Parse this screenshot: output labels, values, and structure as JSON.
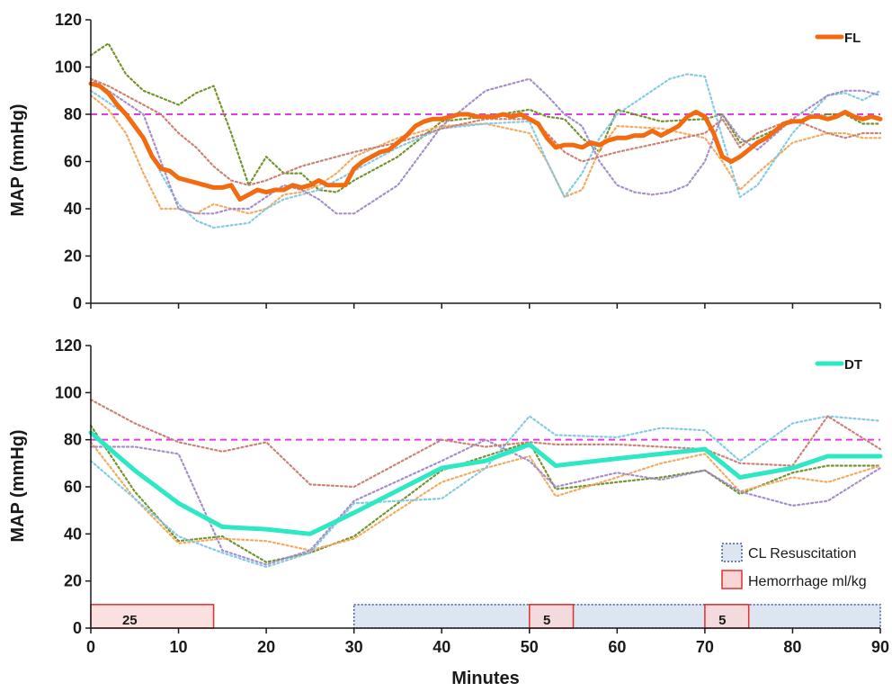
{
  "chart_data": [
    {
      "type": "line",
      "title": "",
      "xlabel": "",
      "ylabel": "MAP (mmHg)",
      "xlim": [
        0,
        90
      ],
      "ylim": [
        0,
        120
      ],
      "xticks": [
        0,
        10,
        20,
        30,
        40,
        50,
        60,
        70,
        80,
        90
      ],
      "yticks": [
        0,
        20,
        40,
        60,
        80,
        100,
        120
      ],
      "reference_line": 80,
      "legend_position": "top-right",
      "colors": {
        "main": "#f26b10",
        "reference": "#e23ae6",
        "individuals": [
          "#6b8e23",
          "#f2a65a",
          "#7ec8e3",
          "#a08ac8",
          "#c97c6e"
        ]
      },
      "main_series": {
        "name": "FL",
        "x": [
          0,
          1,
          2,
          3,
          4,
          5,
          6,
          7,
          8,
          9,
          10,
          11,
          12,
          13,
          14,
          15,
          16,
          17,
          18,
          19,
          20,
          21,
          22,
          23,
          24,
          25,
          26,
          27,
          28,
          29,
          30,
          31,
          32,
          33,
          34,
          35,
          36,
          37,
          38,
          39,
          40,
          41,
          42,
          43,
          44,
          45,
          46,
          47,
          48,
          49,
          50,
          51,
          52,
          53,
          54,
          55,
          56,
          57,
          58,
          59,
          60,
          61,
          62,
          63,
          64,
          65,
          66,
          67,
          68,
          69,
          70,
          71,
          72,
          73,
          74,
          75,
          76,
          77,
          78,
          79,
          80,
          81,
          82,
          83,
          84,
          85,
          86,
          87,
          88,
          89,
          90
        ],
        "values": [
          93,
          92,
          89,
          84,
          80,
          75,
          70,
          62,
          57,
          56,
          53,
          52,
          51,
          50,
          49,
          49,
          50,
          44,
          46,
          48,
          47,
          48,
          48,
          50,
          49,
          50,
          52,
          50,
          50,
          50,
          57,
          60,
          62,
          64,
          65,
          68,
          71,
          75,
          77,
          78,
          78,
          79,
          80,
          80,
          79,
          79,
          79,
          80,
          79,
          80,
          78,
          76,
          70,
          66,
          67,
          67,
          66,
          68,
          67,
          69,
          70,
          70,
          71,
          71,
          73,
          71,
          73,
          75,
          79,
          81,
          79,
          72,
          62,
          60,
          62,
          65,
          68,
          70,
          73,
          76,
          77,
          77,
          79,
          79,
          78,
          79,
          81,
          79,
          78,
          79,
          78
        ]
      },
      "individual_series": [
        {
          "x": [
            0,
            2,
            4,
            6,
            8,
            10,
            12,
            14,
            16,
            18,
            20,
            22,
            24,
            26,
            28,
            30,
            35,
            40,
            45,
            50,
            52,
            54,
            56,
            58,
            60,
            65,
            70,
            72,
            74,
            76,
            80,
            84,
            86,
            88,
            90
          ],
          "values": [
            105,
            110,
            97,
            90,
            87,
            84,
            89,
            92,
            72,
            50,
            62,
            55,
            55,
            48,
            47,
            52,
            62,
            77,
            79,
            82,
            79,
            78,
            70,
            64,
            82,
            77,
            78,
            80,
            68,
            70,
            77,
            80,
            80,
            76,
            76
          ]
        },
        {
          "x": [
            0,
            2,
            4,
            6,
            8,
            10,
            12,
            14,
            16,
            18,
            20,
            22,
            24,
            26,
            28,
            30,
            35,
            40,
            45,
            50,
            52,
            54,
            56,
            58,
            60,
            65,
            70,
            72,
            74,
            76,
            80,
            84,
            86,
            88,
            90
          ],
          "values": [
            88,
            82,
            72,
            55,
            40,
            40,
            38,
            42,
            40,
            38,
            40,
            46,
            47,
            50,
            55,
            62,
            70,
            75,
            76,
            72,
            60,
            45,
            48,
            65,
            75,
            74,
            70,
            60,
            48,
            55,
            68,
            72,
            72,
            70,
            70
          ]
        },
        {
          "x": [
            0,
            2,
            4,
            6,
            8,
            10,
            12,
            14,
            16,
            18,
            20,
            22,
            24,
            26,
            28,
            30,
            35,
            40,
            45,
            50,
            52,
            54,
            56,
            58,
            60,
            62,
            64,
            66,
            68,
            70,
            72,
            74,
            76,
            80,
            84,
            86,
            88,
            90
          ],
          "values": [
            90,
            85,
            80,
            70,
            55,
            42,
            35,
            32,
            33,
            34,
            40,
            44,
            46,
            48,
            52,
            56,
            66,
            74,
            76,
            77,
            60,
            45,
            55,
            70,
            80,
            85,
            90,
            95,
            97,
            96,
            70,
            45,
            50,
            72,
            88,
            89,
            86,
            90
          ]
        },
        {
          "x": [
            0,
            2,
            4,
            6,
            8,
            10,
            12,
            14,
            16,
            18,
            20,
            22,
            24,
            26,
            28,
            30,
            35,
            40,
            45,
            50,
            52,
            54,
            56,
            58,
            60,
            62,
            64,
            66,
            68,
            70,
            72,
            74,
            76,
            80,
            84,
            86,
            88,
            90
          ],
          "values": [
            95,
            90,
            85,
            80,
            60,
            40,
            38,
            38,
            40,
            40,
            45,
            50,
            48,
            44,
            38,
            38,
            50,
            75,
            90,
            95,
            88,
            80,
            75,
            60,
            50,
            47,
            46,
            47,
            50,
            60,
            80,
            70,
            65,
            78,
            88,
            90,
            90,
            88
          ]
        },
        {
          "x": [
            0,
            2,
            4,
            6,
            8,
            10,
            12,
            14,
            16,
            18,
            20,
            22,
            24,
            26,
            28,
            30,
            35,
            40,
            45,
            50,
            52,
            54,
            56,
            58,
            60,
            65,
            70,
            72,
            74,
            76,
            80,
            84,
            86,
            88,
            90
          ],
          "values": [
            95,
            92,
            88,
            84,
            80,
            72,
            66,
            58,
            52,
            50,
            52,
            55,
            58,
            60,
            62,
            64,
            68,
            74,
            78,
            78,
            72,
            64,
            60,
            62,
            64,
            68,
            72,
            78,
            66,
            72,
            78,
            72,
            70,
            72,
            72
          ]
        }
      ]
    },
    {
      "type": "line",
      "title": "",
      "xlabel": "Minutes",
      "ylabel": "MAP (mmHg)",
      "xlim": [
        0,
        90
      ],
      "ylim": [
        0,
        120
      ],
      "xticks": [
        0,
        10,
        20,
        30,
        40,
        50,
        60,
        70,
        80,
        90
      ],
      "yticks": [
        0,
        20,
        40,
        60,
        80,
        100,
        120
      ],
      "reference_line": 80,
      "legend_position": "top-right",
      "colors": {
        "main": "#2ee8c4",
        "reference": "#e23ae6",
        "individuals": [
          "#6b8e23",
          "#f2a65a",
          "#7ec8e3",
          "#a08ac8",
          "#c97c6e"
        ],
        "cl_fill": "#dde5f0",
        "cl_border": "#3a5f9e",
        "hem_fill": "#f9d5d5",
        "hem_border": "#e03030"
      },
      "main_series": {
        "name": "DT",
        "x": [
          0,
          5,
          10,
          15,
          20,
          25,
          30,
          40,
          45,
          50,
          53,
          60,
          65,
          70,
          74,
          80,
          84,
          90
        ],
        "values": [
          83,
          67,
          53,
          43,
          42,
          40,
          49,
          68,
          71,
          78,
          69,
          72,
          74,
          76,
          64,
          68,
          73,
          73
        ]
      },
      "individual_series": [
        {
          "x": [
            0,
            5,
            10,
            15,
            20,
            25,
            30,
            40,
            45,
            50,
            53,
            60,
            65,
            70,
            74,
            80,
            84,
            90
          ],
          "values": [
            86,
            58,
            37,
            39,
            28,
            32,
            39,
            67,
            73,
            79,
            59,
            62,
            64,
            67,
            57,
            66,
            69,
            69
          ]
        },
        {
          "x": [
            0,
            5,
            10,
            15,
            20,
            25,
            30,
            40,
            45,
            50,
            53,
            60,
            65,
            70,
            74,
            80,
            84,
            90
          ],
          "values": [
            79,
            55,
            36,
            38,
            37,
            33,
            38,
            62,
            68,
            73,
            56,
            64,
            70,
            74,
            58,
            64,
            62,
            69
          ]
        },
        {
          "x": [
            0,
            5,
            10,
            15,
            20,
            25,
            30,
            40,
            45,
            50,
            53,
            60,
            65,
            70,
            74,
            80,
            84,
            90
          ],
          "values": [
            71,
            55,
            39,
            32,
            26,
            32,
            53,
            55,
            68,
            90,
            82,
            81,
            85,
            84,
            71,
            87,
            90,
            88
          ]
        },
        {
          "x": [
            0,
            5,
            10,
            15,
            20,
            25,
            30,
            40,
            45,
            50,
            53,
            60,
            65,
            70,
            74,
            80,
            84,
            90
          ],
          "values": [
            77,
            77,
            74,
            33,
            27,
            33,
            54,
            71,
            80,
            71,
            60,
            66,
            63,
            67,
            58,
            52,
            54,
            68
          ]
        },
        {
          "x": [
            0,
            5,
            10,
            15,
            20,
            25,
            30,
            40,
            45,
            50,
            53,
            60,
            65,
            70,
            74,
            80,
            84,
            90
          ],
          "values": [
            97,
            87,
            79,
            75,
            79,
            61,
            60,
            80,
            77,
            79,
            78,
            78,
            77,
            76,
            70,
            69,
            90,
            76
          ]
        }
      ],
      "intervals": [
        {
          "type": "hemorrhage",
          "start": 0,
          "end": 14,
          "label": "25"
        },
        {
          "type": "resuscitation",
          "start": 30,
          "end": 90,
          "label": ""
        },
        {
          "type": "hemorrhage",
          "start": 50,
          "end": 55,
          "label": "5"
        },
        {
          "type": "hemorrhage",
          "start": 70,
          "end": 75,
          "label": "5"
        }
      ],
      "interval_axis_extent": [
        0,
        10
      ],
      "interval_legend": [
        {
          "type": "resuscitation",
          "label": "CL Resuscitation"
        },
        {
          "type": "hemorrhage",
          "label": "Hemorrhage ml/kg"
        }
      ]
    }
  ]
}
